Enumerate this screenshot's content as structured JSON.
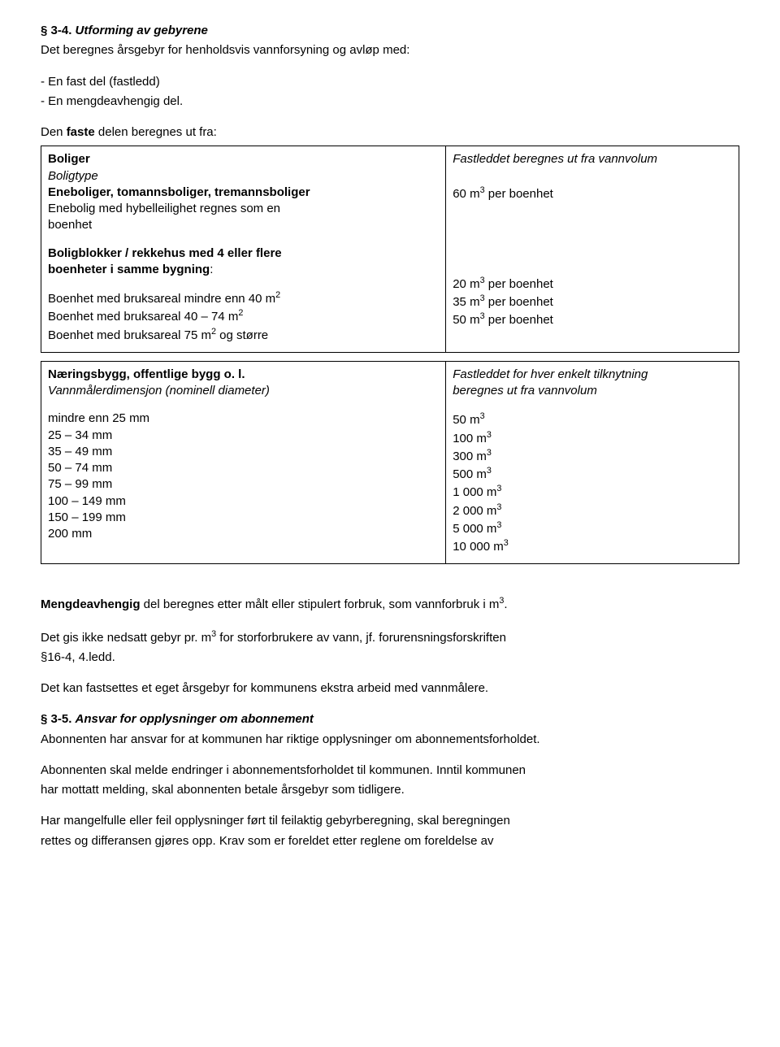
{
  "section34": {
    "num": "§ 3-4.",
    "title": "Utforming av gebyrene",
    "intro": "Det beregnes årsgebyr for henholdsvis vannforsyning og avløp med:",
    "bullet1": "- En fast del (fastledd)",
    "bullet2": "- En mengdeavhengig del.",
    "fasteLine": "Den faste delen beregnes ut fra:"
  },
  "table1": {
    "left": {
      "boligerLabel": "Boliger",
      "boligtypeLabel": "Boligtype",
      "eneboliger": "Eneboliger, tomannsboliger, tremannsboliger",
      "eneboligHybel1": "Enebolig med hybelleilighet regnes som en",
      "eneboligHybel2": "boenhet",
      "blokkHeader1": "Boligblokker / rekkehus med 4 eller flere",
      "blokkHeader2": "boenheter i samme bygning",
      "blokkColon": ":",
      "ba40": "Boenhet med bruksareal mindre enn 40 m",
      "ba4074": "Boenhet med bruksareal 40 – 74 m",
      "ba75": "Boenhet med bruksareal 75 m",
      "ba75suffix": " og større"
    },
    "right": {
      "fastledd": "Fastleddet beregnes ut fra vannvolum",
      "v60": "60 m",
      "perBoenhet": " per boenhet",
      "v20": "20 m",
      "v35": "35 m",
      "v50": "50 m"
    }
  },
  "table2": {
    "left": {
      "naerings": "Næringsbygg, offentlige bygg o. l.",
      "vannmaler": "Vannmålerdimensjon (nominell diameter)",
      "r1": "mindre enn 25 mm",
      "r2": "25 – 34 mm",
      "r3": "35 – 49 mm",
      "r4": "50 – 74 mm",
      "r5": "75 – 99 mm",
      "r6": "100 – 149 mm",
      "r7": "150 – 199 mm",
      "r8": "200 mm"
    },
    "right": {
      "fastledd1": "Fastleddet for hver enkelt tilknytning",
      "fastledd2": "beregnes ut fra vannvolum",
      "v50": "50 m",
      "v100": "100 m",
      "v300": "300 m",
      "v500": "500 m",
      "v1000": "1 000 m",
      "v2000": "2 000 m",
      "v5000": "5 000 m",
      "v10000": "10 000 m"
    }
  },
  "after": {
    "mengdeBold": "Mengdeavhengig",
    "mengdeRest": " del beregnes etter målt eller stipulert forbruk, som vannforbruk i m",
    "mengdeDot": ".",
    "nedsatt1": "Det gis ikke nedsatt gebyr pr. m",
    "nedsatt2": " for storforbrukere av vann, jf. forurensningsforskriften",
    "nedsatt3": "§16-4, 4.ledd.",
    "fastsettes": "Det kan fastsettes et eget årsgebyr for kommunens ekstra arbeid med vannmålere."
  },
  "section35": {
    "num": "§ 3-5.",
    "title": "Ansvar for opplysninger om abonnement",
    "p1": "Abonnenten har ansvar for at kommunen har riktige opplysninger om abonnementsforholdet.",
    "p2a": "Abonnenten skal melde endringer i abonnementsforholdet til kommunen. Inntil kommunen",
    "p2b": "har mottatt melding, skal abonnenten betale årsgebyr som tidligere.",
    "p3a": "Har mangelfulle eller feil opplysninger ført til feilaktig gebyrberegning, skal beregningen",
    "p3b": "rettes og differansen gjøres opp. Krav som er foreldet etter reglene om foreldelse av"
  },
  "sup2": "2",
  "sup3": "3"
}
